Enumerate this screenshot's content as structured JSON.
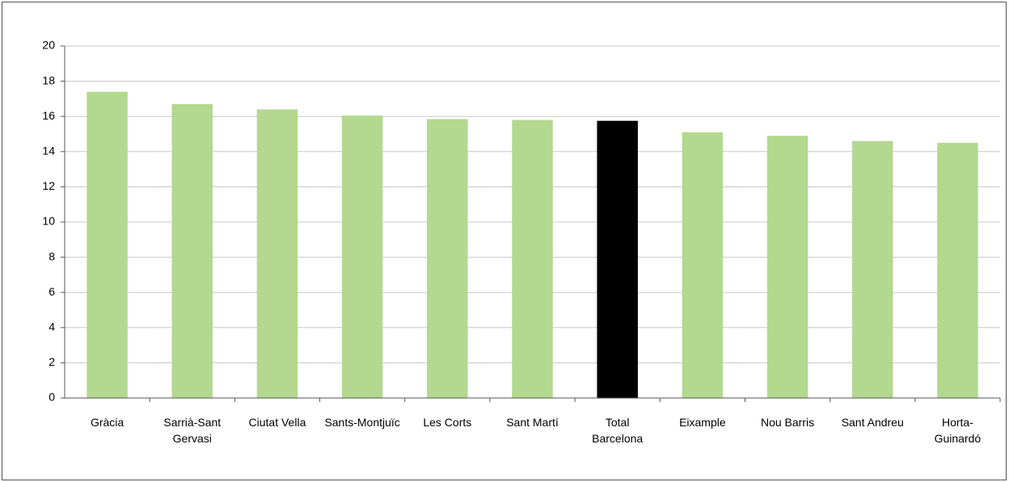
{
  "chart_data": {
    "type": "bar",
    "categories": [
      "Gràcia",
      "Sarrià-Sant Gervasi",
      "Ciutat Vella",
      "Sants-Montjuïc",
      "Les Corts",
      "Sant Martí",
      "Total Barcelona",
      "Eixample",
      "Nou Barris",
      "Sant Andreu",
      "Horta-Guinardó"
    ],
    "values": [
      17.4,
      16.7,
      16.4,
      16.05,
      15.85,
      15.8,
      15.75,
      15.1,
      14.9,
      14.6,
      14.5
    ],
    "colors": [
      "#b3d88f",
      "#b3d88f",
      "#b3d88f",
      "#b3d88f",
      "#b3d88f",
      "#b3d88f",
      "#000000",
      "#b3d88f",
      "#b3d88f",
      "#b3d88f",
      "#b3d88f"
    ],
    "ylim": [
      0,
      20
    ],
    "yticks": [
      0,
      2,
      4,
      6,
      8,
      10,
      12,
      14,
      16,
      18,
      20
    ],
    "grid": true
  }
}
